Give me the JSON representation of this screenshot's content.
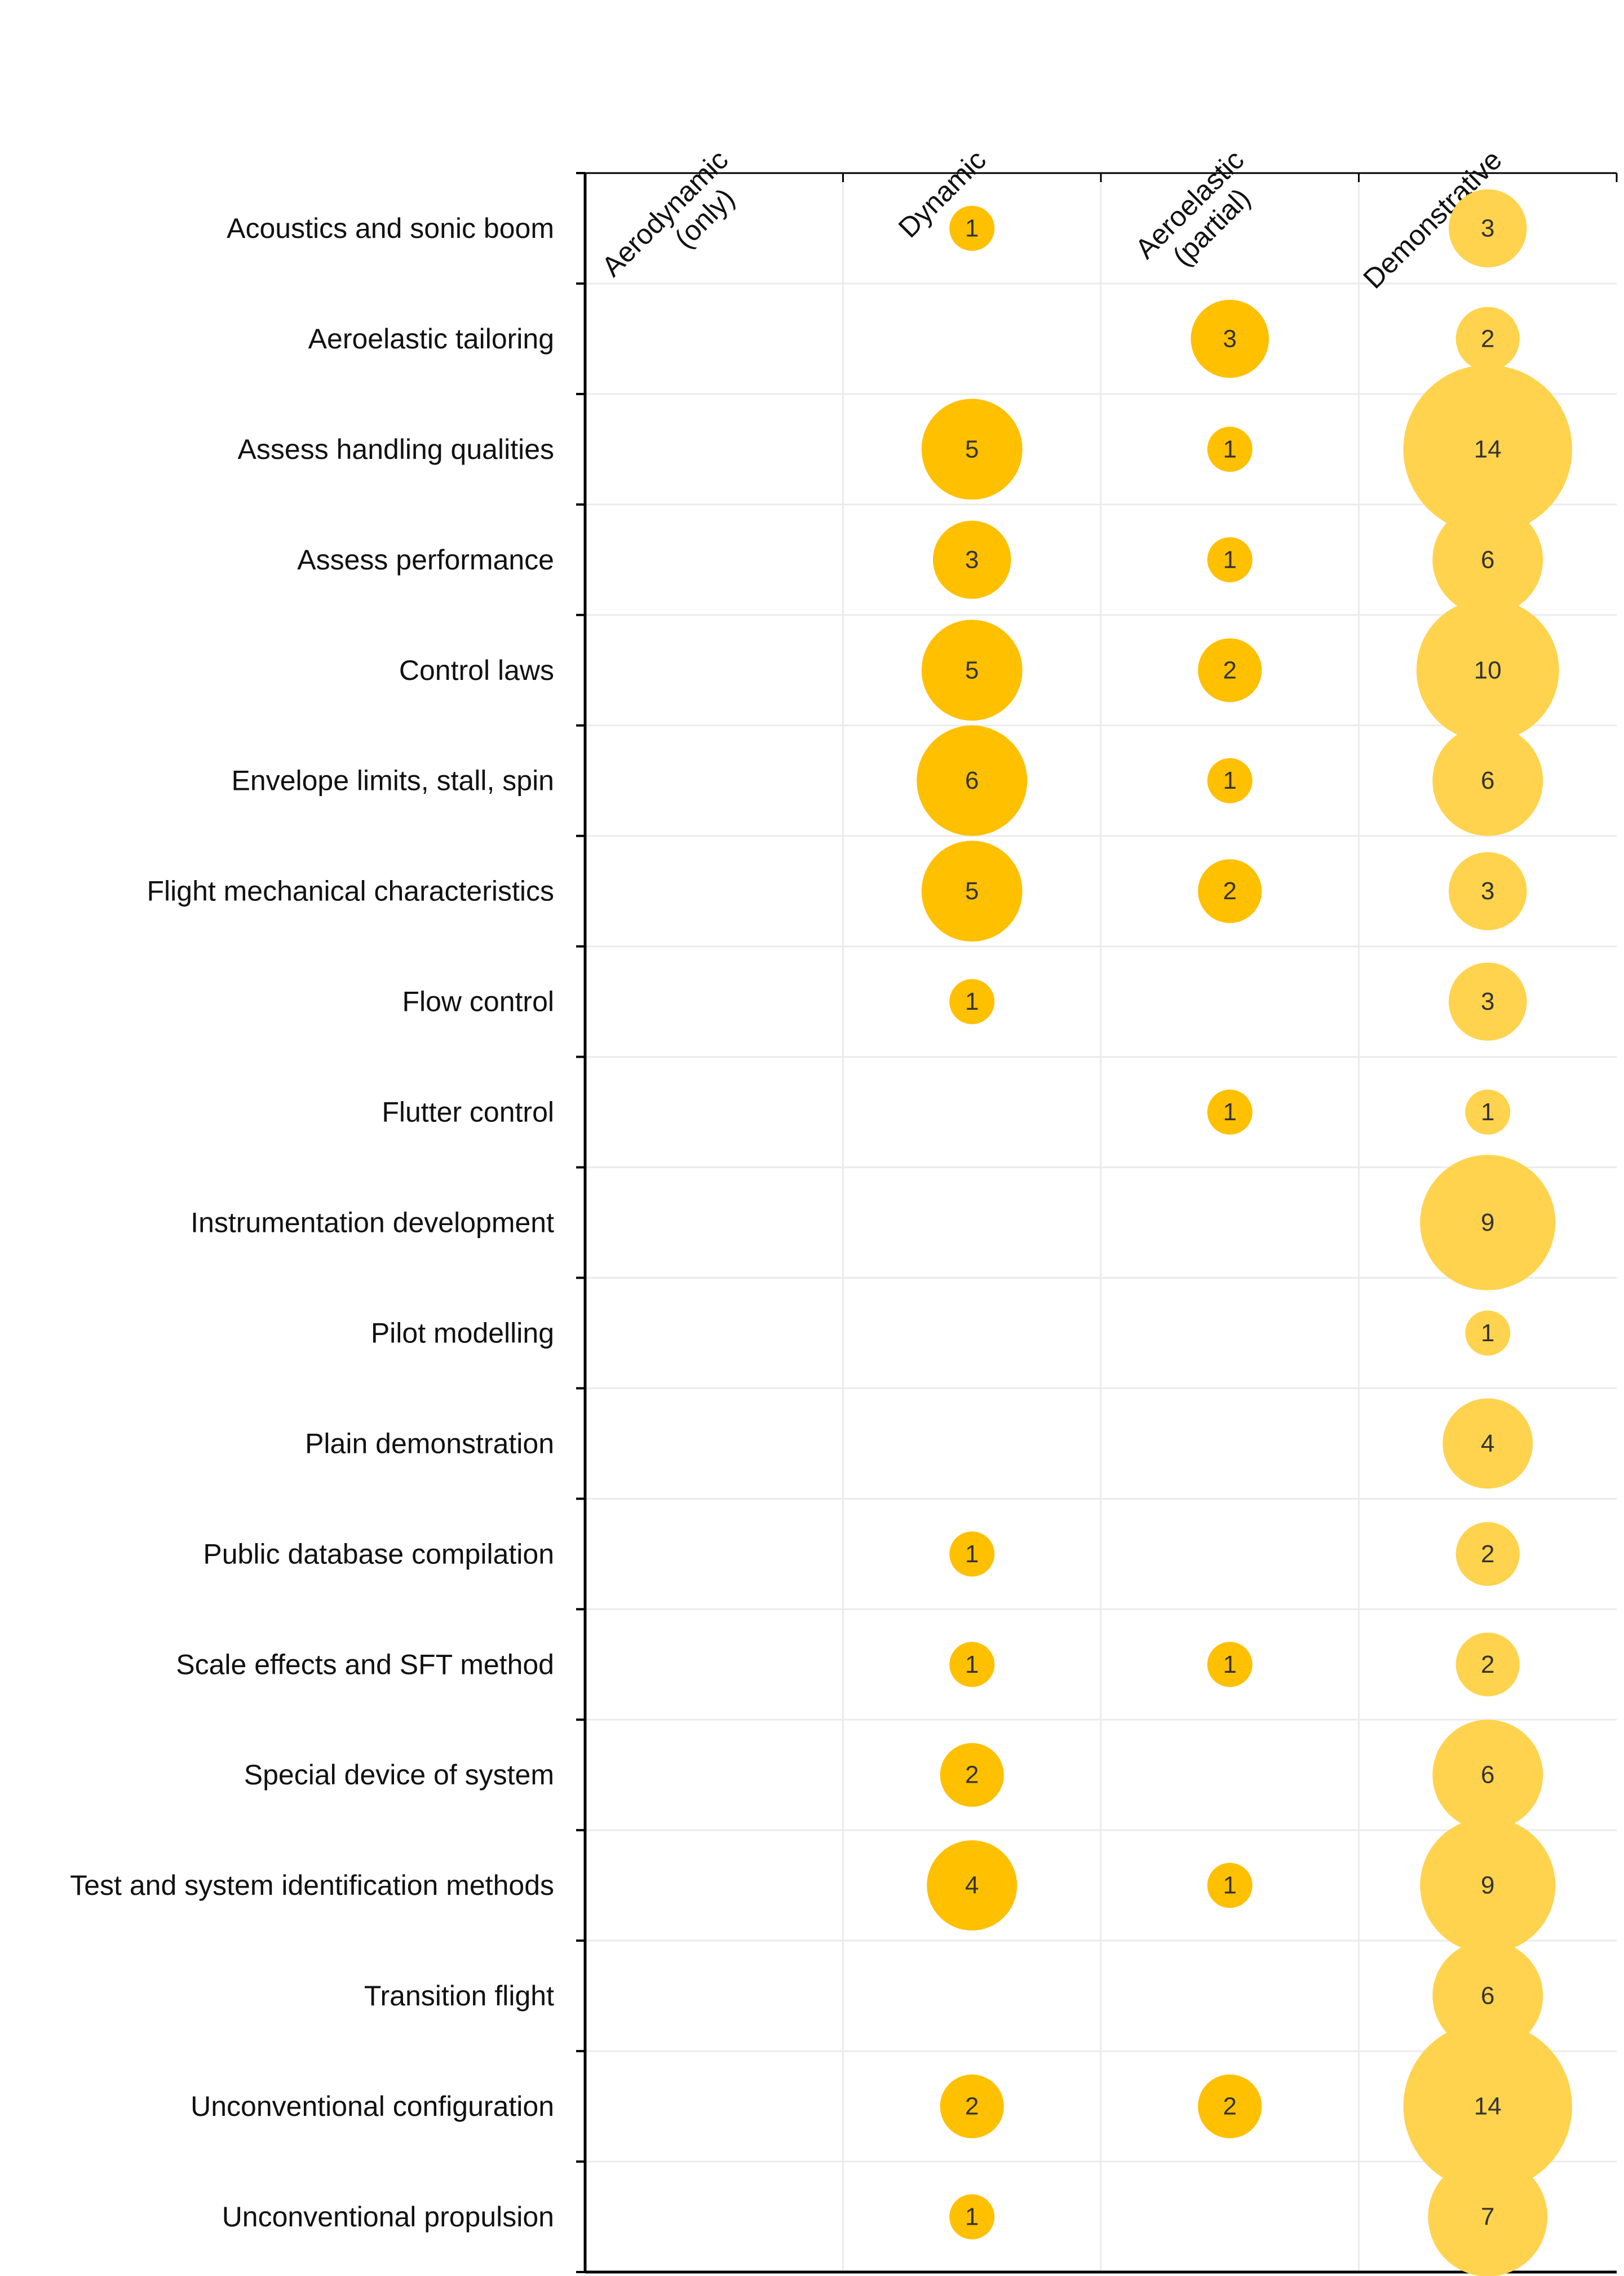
{
  "chart_data": {
    "type": "bubble-matrix",
    "columns": [
      [
        "Aerodynamic",
        "(only)"
      ],
      [
        "Dynamic"
      ],
      [
        "Aeroelastic",
        "(partial)"
      ],
      [
        "Demonstrative"
      ]
    ],
    "rows": [
      "Acoustics and sonic boom",
      "Aeroelastic tailoring",
      "Assess handling qualities",
      "Assess performance",
      "Control laws",
      "Envelope limits, stall, spin",
      "Flight mechanical characteristics",
      "Flow control",
      "Flutter control",
      "Instrumentation development",
      "Pilot modelling",
      "Plain demonstration",
      "Public database compilation",
      "Scale effects and SFT method",
      "Special device of system",
      "Test and system identification methods",
      "Transition flight",
      "Unconventional configuration",
      "Unconventional propulsion"
    ],
    "values": [
      [
        null,
        1,
        null,
        3
      ],
      [
        null,
        null,
        3,
        2
      ],
      [
        null,
        5,
        1,
        14
      ],
      [
        null,
        3,
        1,
        6
      ],
      [
        null,
        5,
        2,
        10
      ],
      [
        null,
        6,
        1,
        6
      ],
      [
        null,
        5,
        2,
        3
      ],
      [
        null,
        1,
        null,
        3
      ],
      [
        null,
        null,
        1,
        1
      ],
      [
        null,
        null,
        null,
        9
      ],
      [
        null,
        null,
        null,
        1
      ],
      [
        null,
        null,
        null,
        4
      ],
      [
        null,
        1,
        null,
        2
      ],
      [
        null,
        1,
        1,
        2
      ],
      [
        null,
        2,
        null,
        6
      ],
      [
        null,
        4,
        1,
        9
      ],
      [
        null,
        null,
        null,
        6
      ],
      [
        null,
        2,
        2,
        14
      ],
      [
        null,
        1,
        null,
        7
      ]
    ],
    "colors": {
      "dynamic_aeroelastic": "#FFC000",
      "demonstrative": "#FFD34D",
      "grid": "#EBEBEB",
      "axis": "#000000",
      "text": "#111111",
      "bubble_text": "#333333"
    }
  }
}
